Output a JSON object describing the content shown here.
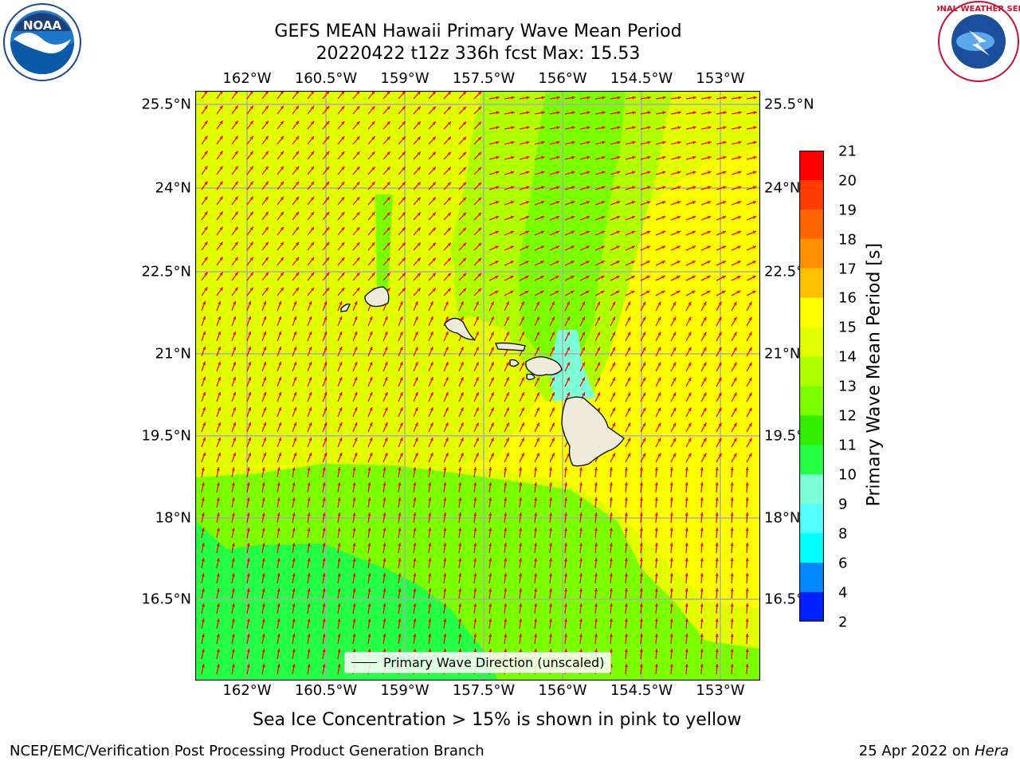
{
  "title": {
    "line1": "GEFS MEAN Hawaii Primary Wave Mean Period",
    "line2": "20220422 t12z 336h fcst   Max: 15.53"
  },
  "logos": {
    "left": "NOAA",
    "right": "NATIONAL WEATHER SERVICE"
  },
  "axes": {
    "lon_ticks": [
      "162°W",
      "160.5°W",
      "159°W",
      "157.5°W",
      "156°W",
      "154.5°W",
      "153°W"
    ],
    "lat_ticks": [
      "25.5°N",
      "24°N",
      "22.5°N",
      "21°N",
      "19.5°N",
      "18°N",
      "16.5°N"
    ]
  },
  "legend": {
    "label": "Primary Wave Direction (unscaled)"
  },
  "colorbar": {
    "label": "Primary Wave Mean Period [s]",
    "ticks": [
      "21",
      "20",
      "19",
      "18",
      "17",
      "16",
      "15",
      "14",
      "13",
      "12",
      "11",
      "10",
      "9",
      "8",
      "6",
      "4",
      "2"
    ],
    "colors": [
      "#ff0000",
      "#ff3b00",
      "#ff6400",
      "#ff9000",
      "#ffc000",
      "#ffff00",
      "#e2ff00",
      "#b0ff00",
      "#7aff00",
      "#33ee00",
      "#22ff44",
      "#7cffd6",
      "#55ffff",
      "#00ffff",
      "#0088ff",
      "#0022ff"
    ]
  },
  "map": {
    "colors": {
      "yellow": "#ffff00",
      "yellow_green": "#e2ff00",
      "light_green": "#b0ff00",
      "green": "#7aff00",
      "bright_green": "#33ee00",
      "mint": "#22ff44",
      "cyan": "#7cffd6",
      "land": "#efebdb",
      "arrow": "#ff0000",
      "grid": "#aaaaaa"
    }
  },
  "caption": "Sea Ice Concentration > 15% is shown in pink to yellow",
  "footer": {
    "left": "NCEP/EMC/Verification Post Processing Product Generation Branch",
    "right_date": "25 Apr 2022 on ",
    "right_host": "Hera"
  }
}
